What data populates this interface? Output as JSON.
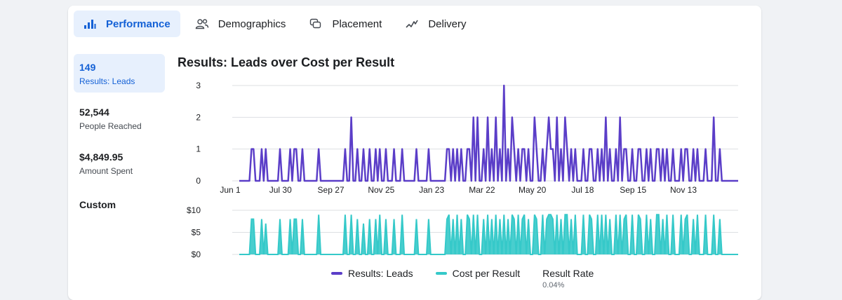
{
  "tabs": [
    {
      "label": "Performance",
      "icon": "bar-chart-icon",
      "active": true
    },
    {
      "label": "Demographics",
      "icon": "people-icon",
      "active": false
    },
    {
      "label": "Placement",
      "icon": "placement-icon",
      "active": false
    },
    {
      "label": "Delivery",
      "icon": "delivery-trend-icon",
      "active": false
    }
  ],
  "metrics": [
    {
      "value": "149",
      "label": "Results: Leads"
    },
    {
      "value": "52,544",
      "label": "People Reached"
    },
    {
      "value": "$4,849.95",
      "label": "Amount Spent"
    }
  ],
  "custom_label": "Custom",
  "legend": {
    "leads": "Results: Leads",
    "cost": "Cost per Result",
    "rate_label": "Result Rate",
    "rate_value": "0.04%"
  },
  "colors": {
    "accent": "#1461d6",
    "leads": "#5b3ec8",
    "cost": "#35c9c9",
    "active_bg": "#e7f0fd"
  },
  "chart_data": [
    {
      "type": "line",
      "title": "Results: Leads over Cost per Result",
      "x_tick_labels": [
        "Jun 1",
        "Jul 30",
        "Sep 27",
        "Nov 25",
        "Jan 23",
        "Mar 22",
        "May 20",
        "Jul 18",
        "Sep 15",
        "Nov 13"
      ],
      "ylim": [
        0,
        3
      ],
      "yticks": [
        "0",
        "1",
        "2",
        "3"
      ],
      "grid": true,
      "series": [
        {
          "name": "Results: Leads",
          "values": [
            0,
            0,
            0,
            0,
            0,
            0,
            1,
            1,
            0,
            0,
            0,
            1,
            0,
            1,
            0,
            0,
            0,
            0,
            0,
            0,
            1,
            0,
            0,
            0,
            0,
            1,
            0,
            1,
            1,
            0,
            0,
            1,
            0,
            0,
            0,
            0,
            0,
            0,
            0,
            1,
            0,
            0,
            0,
            0,
            0,
            0,
            0,
            0,
            0,
            0,
            0,
            0,
            1,
            0,
            0,
            2,
            0,
            0,
            1,
            0,
            0,
            1,
            0,
            0,
            1,
            0,
            0,
            1,
            0,
            1,
            0,
            0,
            1,
            0,
            0,
            0,
            1,
            0,
            0,
            0,
            1,
            0,
            0,
            0,
            0,
            0,
            0,
            1,
            0,
            0,
            0,
            0,
            0,
            1,
            0,
            0,
            0,
            0,
            0,
            0,
            0,
            0,
            1,
            1,
            0,
            1,
            0,
            1,
            0,
            1,
            0,
            0,
            1,
            1,
            0,
            2,
            0,
            2,
            0,
            0,
            1,
            0,
            2,
            0,
            1,
            0,
            2,
            0,
            1,
            0,
            3,
            0,
            1,
            0,
            2,
            1,
            0,
            1,
            0,
            1,
            1,
            0,
            1,
            0,
            0,
            2,
            1,
            0,
            0,
            1,
            0,
            1,
            2,
            1,
            1,
            0,
            2,
            0,
            1,
            0,
            2,
            1,
            0,
            1,
            0,
            1,
            0,
            0,
            0,
            1,
            0,
            0,
            1,
            1,
            0,
            0,
            1,
            0,
            1,
            0,
            2,
            0,
            1,
            0,
            0,
            1,
            0,
            2,
            0,
            1,
            1,
            0,
            0,
            1,
            0,
            0,
            1,
            1,
            0,
            0,
            1,
            0,
            1,
            0,
            0,
            1,
            1,
            0,
            1,
            0,
            1,
            0,
            0,
            1,
            0,
            0,
            0,
            1,
            0,
            1,
            1,
            0,
            0,
            1,
            0,
            1,
            0,
            0,
            0,
            1,
            0,
            0,
            0,
            2,
            0,
            0,
            1,
            0,
            0,
            0,
            0,
            0,
            0,
            0,
            0,
            0
          ]
        }
      ]
    },
    {
      "type": "area",
      "ylim": [
        0,
        10
      ],
      "yticks": [
        "$0",
        "$5",
        "$10"
      ],
      "grid": true,
      "series": [
        {
          "name": "Cost per Result",
          "values": [
            0,
            0,
            0,
            0,
            0,
            0,
            8,
            8,
            0,
            0,
            0,
            8,
            0,
            7,
            0,
            0,
            0,
            0,
            0,
            0,
            8,
            0,
            0,
            0,
            0,
            8,
            0,
            8,
            8,
            0,
            0,
            8,
            0,
            0,
            0,
            0,
            0,
            0,
            0,
            9,
            0,
            0,
            0,
            0,
            0,
            0,
            0,
            0,
            0,
            0,
            0,
            0,
            9,
            0,
            0,
            9,
            0,
            0,
            8,
            0,
            0,
            7,
            0,
            0,
            8,
            0,
            0,
            8,
            0,
            9,
            0,
            0,
            8,
            0,
            0,
            0,
            8,
            0,
            0,
            0,
            9,
            0,
            0,
            0,
            0,
            0,
            0,
            8,
            0,
            0,
            0,
            0,
            0,
            8,
            0,
            0,
            0,
            0,
            0,
            0,
            0,
            0,
            8,
            9,
            0,
            8,
            0,
            9,
            0,
            8,
            0,
            0,
            9,
            8,
            0,
            9,
            0,
            9,
            0,
            0,
            8,
            0,
            9,
            0,
            8,
            0,
            9,
            0,
            8,
            0,
            9,
            0,
            8,
            0,
            9,
            8,
            0,
            9,
            0,
            8,
            9,
            0,
            8,
            0,
            0,
            9,
            8,
            0,
            0,
            9,
            0,
            8,
            9,
            9,
            8,
            0,
            9,
            0,
            8,
            0,
            9,
            9,
            0,
            8,
            0,
            9,
            0,
            0,
            0,
            9,
            0,
            0,
            9,
            8,
            0,
            0,
            9,
            0,
            9,
            0,
            9,
            0,
            8,
            0,
            0,
            9,
            0,
            9,
            0,
            8,
            9,
            0,
            0,
            9,
            0,
            0,
            9,
            8,
            0,
            0,
            9,
            0,
            8,
            0,
            0,
            9,
            9,
            0,
            8,
            0,
            9,
            0,
            0,
            9,
            0,
            0,
            0,
            9,
            0,
            8,
            9,
            0,
            0,
            8,
            0,
            9,
            0,
            0,
            0,
            9,
            0,
            0,
            0,
            9,
            0,
            0,
            8,
            0,
            0,
            0,
            0,
            0,
            0,
            0,
            0,
            0
          ]
        }
      ]
    }
  ]
}
